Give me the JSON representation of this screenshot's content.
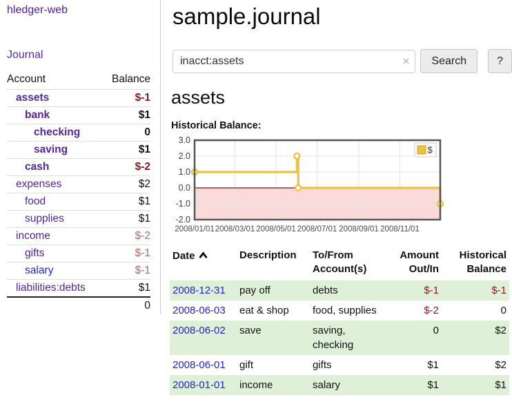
{
  "app": {
    "brand": "hledger-web"
  },
  "sidebar": {
    "nav_journal": "Journal",
    "headers": {
      "account": "Account",
      "balance": "Balance"
    },
    "accounts": [
      {
        "name": "assets",
        "balance": "$-1",
        "indent": 1,
        "bold": true,
        "balance_tone": "neg-strong",
        "link_color": "purple"
      },
      {
        "name": "bank",
        "balance": "$1",
        "indent": 2,
        "bold": true,
        "balance_tone": "normal",
        "link_color": "purple"
      },
      {
        "name": "checking",
        "balance": "0",
        "indent": 3,
        "bold": true,
        "balance_tone": "normal",
        "link_color": "purple"
      },
      {
        "name": "saving",
        "balance": "$1",
        "indent": 3,
        "bold": true,
        "balance_tone": "normal",
        "link_color": "purple"
      },
      {
        "name": "cash",
        "balance": "$-2",
        "indent": 2,
        "bold": true,
        "balance_tone": "neg-strong",
        "link_color": "purple"
      },
      {
        "name": "expenses",
        "balance": "$2",
        "indent": 1,
        "bold": false,
        "balance_tone": "normal",
        "link_color": "purple"
      },
      {
        "name": "food",
        "balance": "$1",
        "indent": 2,
        "bold": false,
        "balance_tone": "normal",
        "link_color": "purple"
      },
      {
        "name": "supplies",
        "balance": "$1",
        "indent": 2,
        "bold": false,
        "balance_tone": "normal",
        "link_color": "purple"
      },
      {
        "name": "income",
        "balance": "$-2",
        "indent": 1,
        "bold": false,
        "balance_tone": "neg-soft",
        "link_color": "purple"
      },
      {
        "name": "gifts",
        "balance": "$-1",
        "indent": 2,
        "bold": false,
        "balance_tone": "neg-soft",
        "link_color": "purple"
      },
      {
        "name": "salary",
        "balance": "$-1",
        "indent": 2,
        "bold": false,
        "balance_tone": "neg-soft",
        "link_color": "blue"
      },
      {
        "name": "liabilities:debts",
        "balance": "$1",
        "indent": 1,
        "bold": false,
        "balance_tone": "normal",
        "link_color": "purple"
      }
    ],
    "total": "0"
  },
  "main": {
    "title": "sample.journal",
    "search": {
      "value": "inacct:assets",
      "clear_icon": "×",
      "button_label": "Search",
      "help_label": "?"
    },
    "account_heading": "assets",
    "chart_label": "Historical Balance:"
  },
  "chart_data": {
    "type": "line",
    "title": "Historical Balance:",
    "series": [
      {
        "name": "$",
        "color": "#edc240",
        "step": true,
        "points": [
          [
            "2008-01-01",
            1
          ],
          [
            "2008-06-01",
            2
          ],
          [
            "2008-06-03",
            0
          ],
          [
            "2008-12-31",
            -1
          ]
        ]
      }
    ],
    "x_range": [
      "2008-01-01",
      "2008-12-31"
    ],
    "ylim": [
      -2,
      3
    ],
    "y_ticks": [
      3.0,
      2.0,
      1.0,
      0.0,
      -1.0,
      -2.0
    ],
    "x_ticks": [
      {
        "label": "2008/01/01",
        "date": "2008-01-01"
      },
      {
        "label": "2008/03/01",
        "date": "2008-03-01"
      },
      {
        "label": "2008/05/01",
        "date": "2008-05-01"
      },
      {
        "label": "2008/07/01",
        "date": "2008-07-01"
      },
      {
        "label": "2008/09/01",
        "date": "2008-09-01"
      },
      {
        "label": "2008/11/01",
        "date": "2008-11-01"
      }
    ],
    "grid": true,
    "negative_fill": "#fbdada",
    "zero_line_color": "#8b0f0f",
    "legend": {
      "label": "$",
      "position": "top-right"
    }
  },
  "register": {
    "headers": {
      "date": "Date",
      "description": "Description",
      "accounts": "To/From Account(s)",
      "amount": "Amount Out/In",
      "balance": "Historical Balance"
    },
    "sort_icon": "chevron-up",
    "rows": [
      {
        "date": "2008-12-31",
        "description": "pay off",
        "accounts": "debts",
        "amount": "$-1",
        "amount_neg": true,
        "balance": "$-1",
        "balance_neg": true
      },
      {
        "date": "2008-06-03",
        "description": "eat & shop",
        "accounts": "food, supplies",
        "amount": "$-2",
        "amount_neg": true,
        "balance": "0",
        "balance_neg": false
      },
      {
        "date": "2008-06-02",
        "description": "save",
        "accounts": "saving, checking",
        "amount": "0",
        "amount_neg": false,
        "balance": "$2",
        "balance_neg": false
      },
      {
        "date": "2008-06-01",
        "description": "gift",
        "accounts": "gifts",
        "amount": "$1",
        "amount_neg": false,
        "balance": "$2",
        "balance_neg": false
      },
      {
        "date": "2008-01-01",
        "description": "income",
        "accounts": "salary",
        "amount": "$1",
        "amount_neg": false,
        "balance": "$1",
        "balance_neg": false
      }
    ]
  }
}
